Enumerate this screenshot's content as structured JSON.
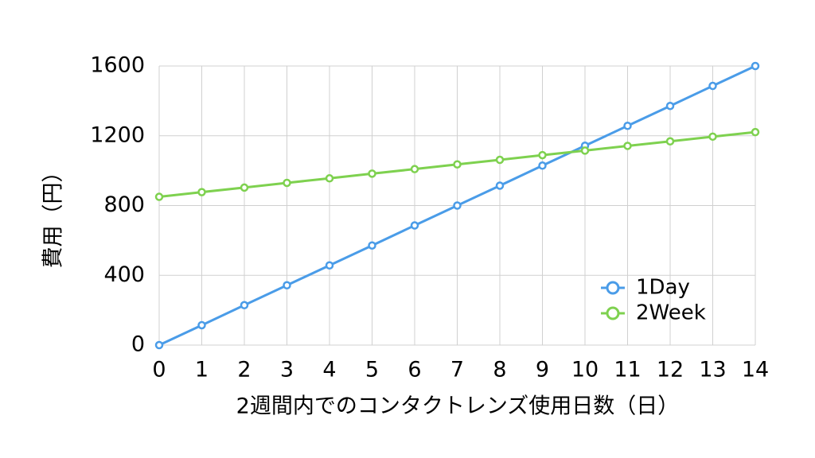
{
  "chart_data": {
    "type": "line",
    "x_label": "2週間内でのコンタクトレンズ使用日数（日）",
    "y_label": "費用（円）",
    "x": [
      0,
      1,
      2,
      3,
      4,
      5,
      6,
      7,
      8,
      9,
      10,
      11,
      12,
      13,
      14
    ],
    "series": [
      {
        "name": "1Day",
        "color": "#4a9ce8",
        "values": [
          0,
          114,
          229,
          343,
          457,
          571,
          686,
          800,
          914,
          1029,
          1143,
          1257,
          1371,
          1486,
          1600
        ]
      },
      {
        "name": "2Week",
        "color": "#7ed14f",
        "values": [
          850,
          877,
          903,
          930,
          956,
          983,
          1009,
          1036,
          1062,
          1089,
          1115,
          1142,
          1168,
          1195,
          1221
        ]
      }
    ],
    "xlim": [
      0,
      14
    ],
    "xticks": [
      0,
      1,
      2,
      3,
      4,
      5,
      6,
      7,
      8,
      9,
      10,
      11,
      12,
      13,
      14
    ],
    "ylim": [
      0,
      1600
    ],
    "yticks": [
      0,
      400,
      800,
      1200,
      1600
    ],
    "grid": true,
    "legend": "lower right"
  }
}
